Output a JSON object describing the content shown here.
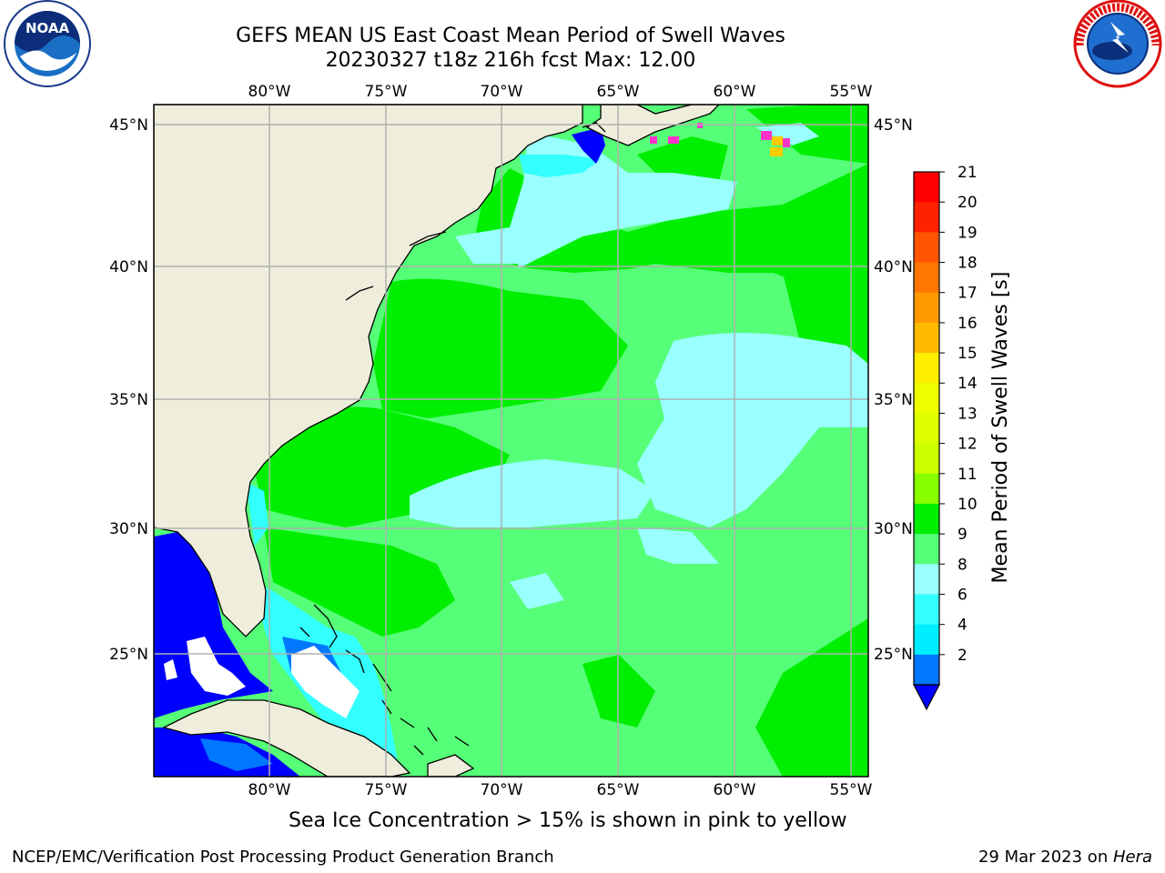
{
  "header": {
    "title_line1": "GEFS MEAN US East Coast Mean Period of Swell Waves",
    "title_line2": "20230327 t18z 216h fcst   Max: 12.00"
  },
  "logos": {
    "left": "noaa-logo",
    "left_text": "NOAA",
    "left_ring_text": "NATIONAL OCEANIC AND ATMOSPHERIC ADMINISTRATION · U.S. DEPARTMENT OF COMMERCE",
    "right": "nws-logo",
    "right_ring_text": "NATIONAL WEATHER SERVICE"
  },
  "map": {
    "lon_ticks_top": [
      "80°W",
      "75°W",
      "70°W",
      "65°W",
      "60°W",
      "55°W"
    ],
    "lon_ticks_bottom": [
      "80°W",
      "75°W",
      "70°W",
      "65°W",
      "60°W",
      "55°W"
    ],
    "lat_ticks_left": [
      "45°N",
      "40°N",
      "35°N",
      "30°N",
      "25°N"
    ],
    "lat_ticks_right": [
      "45°N",
      "40°N",
      "35°N",
      "30°N",
      "25°N"
    ],
    "colors": {
      "land": "#efeedc",
      "grid": "#b0b0b0",
      "ocean_9_10": "#55ff77",
      "ocean_10_11": "#00ee00",
      "ocean_8_9": "#99ffff",
      "ocean_6_8": "#33ffff",
      "ocean_4_6": "#00ccff",
      "ocean_2_4": "#0077ff",
      "ocean_lt_2": "#0000ff",
      "sea_ice_low": "#ff33cc",
      "sea_ice_high": "#ffcc00"
    }
  },
  "colorbar": {
    "label": "Mean Period of Swell Waves [s]",
    "ticks": [
      "21",
      "20",
      "19",
      "18",
      "17",
      "16",
      "15",
      "14",
      "13",
      "12",
      "11",
      "10",
      "9",
      "8",
      "6",
      "4",
      "2"
    ],
    "bins": [
      {
        "color": "#ff0000"
      },
      {
        "color": "#ff2200"
      },
      {
        "color": "#ff5500"
      },
      {
        "color": "#ff7700"
      },
      {
        "color": "#ff9900"
      },
      {
        "color": "#ffbb00"
      },
      {
        "color": "#ffee00"
      },
      {
        "color": "#eeff00"
      },
      {
        "color": "#ddff00"
      },
      {
        "color": "#ccff00"
      },
      {
        "color": "#88ff00"
      },
      {
        "color": "#00ee00"
      },
      {
        "color": "#55ff77"
      },
      {
        "color": "#99ffff"
      },
      {
        "color": "#33ffff"
      },
      {
        "color": "#00eeff"
      },
      {
        "color": "#0077ff"
      }
    ],
    "under_color": "#0000ff"
  },
  "note": "Sea Ice Concentration > 15% is shown in pink to yellow",
  "footer": {
    "credit": "NCEP/EMC/Verification Post Processing Product Generation Branch",
    "date": "29 Mar 2023 on ",
    "machine": "Hera"
  }
}
